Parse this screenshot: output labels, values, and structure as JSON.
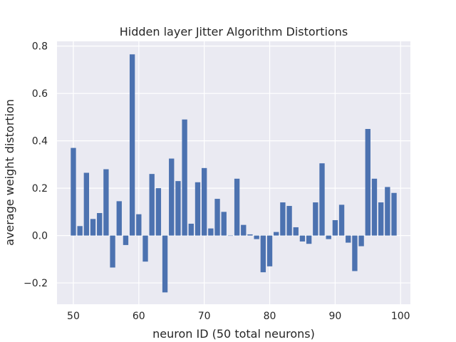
{
  "chart_data": {
    "type": "bar",
    "title": "Hidden layer Jitter Algorithm Distortions",
    "xlabel": "neuron ID (50 total neurons)",
    "ylabel": "average weight distortion",
    "xlim": [
      47.5,
      101.5
    ],
    "ylim": [
      -0.29,
      0.82
    ],
    "xticks": [
      50,
      60,
      70,
      80,
      90,
      100
    ],
    "xtick_labels": [
      "50",
      "60",
      "70",
      "80",
      "90",
      "100"
    ],
    "yticks": [
      -0.2,
      0.0,
      0.2,
      0.4,
      0.6,
      0.8
    ],
    "ytick_labels": [
      "−0.2",
      "0.0",
      "0.2",
      "0.4",
      "0.6",
      "0.8"
    ],
    "grid": true,
    "bar_color": "#4c72b0",
    "background_color": "#eaeaf2",
    "x": [
      50,
      51,
      52,
      53,
      54,
      55,
      56,
      57,
      58,
      59,
      60,
      61,
      62,
      63,
      64,
      65,
      66,
      67,
      68,
      69,
      70,
      71,
      72,
      73,
      74,
      75,
      76,
      77,
      78,
      79,
      80,
      81,
      82,
      83,
      84,
      85,
      86,
      87,
      88,
      89,
      90,
      91,
      92,
      93,
      94,
      95,
      96,
      97,
      98,
      99
    ],
    "values": [
      0.37,
      0.04,
      0.265,
      0.07,
      0.095,
      0.28,
      -0.135,
      0.145,
      -0.04,
      0.765,
      0.09,
      -0.11,
      0.26,
      0.2,
      -0.24,
      0.325,
      0.23,
      0.49,
      0.05,
      0.225,
      0.285,
      0.03,
      0.155,
      0.1,
      0.0,
      0.24,
      0.045,
      0.005,
      -0.015,
      -0.155,
      -0.13,
      0.015,
      0.14,
      0.125,
      0.035,
      -0.025,
      -0.035,
      0.14,
      0.305,
      -0.015,
      0.065,
      0.13,
      -0.03,
      -0.15,
      -0.045,
      0.45,
      0.24,
      0.14,
      0.205,
      0.18
    ]
  }
}
